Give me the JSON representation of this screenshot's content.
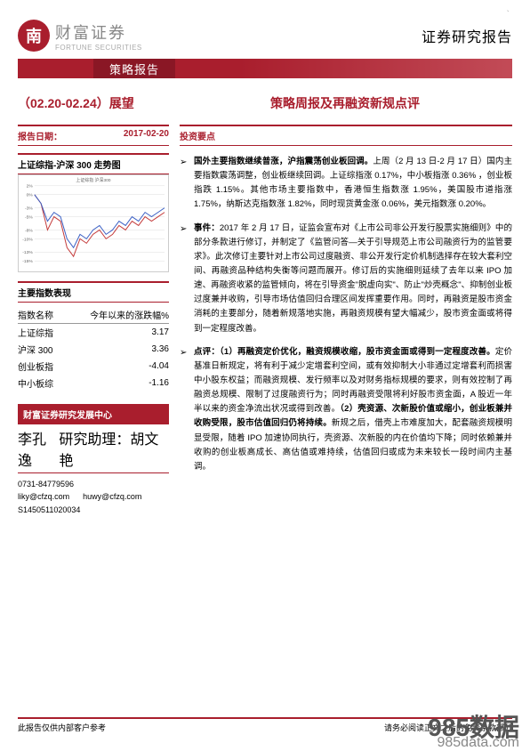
{
  "header": {
    "logo_char": "南",
    "company_cn": "财富证券",
    "company_en": "FORTUNE SECURITIES",
    "report_type": "证券研究报告",
    "tick": "、"
  },
  "red_band": {
    "label": "策略报告"
  },
  "titles": {
    "left": "（02.20-02.24）展望",
    "right": "策略周报及再融资新规点评"
  },
  "report_date": {
    "label": "报告日期：",
    "value": "2017-02-20"
  },
  "chart": {
    "title": "上证综指-沪深 300 走势图",
    "y_ticks": [
      "2%",
      "0%",
      "-3%",
      "-5%",
      "-8%",
      "-10%",
      "-13%",
      "-15%"
    ],
    "series": [
      {
        "name": "上证综指",
        "color": "#c43a3a",
        "points": [
          0,
          -2,
          -8,
          -5,
          -6,
          -12,
          -14,
          -10,
          -11,
          -9,
          -8,
          -10,
          -9,
          -7,
          -8,
          -6,
          -7,
          -5,
          -6,
          -5,
          -4
        ]
      },
      {
        "name": "沪深300",
        "color": "#3a5fc4",
        "points": [
          0,
          -2,
          -6,
          -4,
          -5,
          -10,
          -12,
          -9,
          -10,
          -8,
          -7,
          -9,
          -8,
          -6,
          -7,
          -5,
          -6,
          -4,
          -5,
          -4,
          -3
        ]
      }
    ],
    "y_min": -15,
    "y_max": 2,
    "legend": [
      "上证综指",
      "沪深300"
    ]
  },
  "perf_table": {
    "title": "主要指数表现",
    "headers": [
      "指数名称",
      "今年以来的涨跌幅%"
    ],
    "rows": [
      [
        "上证综指",
        "3.17"
      ],
      [
        "沪深 300",
        "3.36"
      ],
      [
        "创业板指",
        "-4.04"
      ],
      [
        "中小板综",
        "-1.16"
      ]
    ]
  },
  "center": {
    "title": "财富证券研究发展中心",
    "analyst_name": "李孔逸",
    "assistant_label": "研究助理：",
    "assistant_name": "胡文艳",
    "phone": "0731-84779596",
    "email1": "liky@cfzq.com",
    "email2": "huwy@cfzq.com",
    "license": "S1450511020034"
  },
  "right_section_title": "投资要点",
  "bullets": [
    "<b>国外主要指数继续普涨，沪指震荡创业板回调。</b>上周（2 月 13 日-2 月 17 日）国内主要指数震荡调整，创业板继续回调。上证综指涨 0.17%，中小板指涨 0.36% ，创业板指跌 1.15%。其他市场主要指数中，香港恒生指数涨 1.95%，美国股市道指涨 1.75%，纳斯达克指数涨 1.82%，同时现货黄金涨 0.06%，美元指数涨 0.20%。",
    "<b>事件：</b>2017 年 2 月 17 日，证监会宣布对《上市公司非公开发行股票实施细则》中的部分条款进行修订，并制定了《监管问答—关于引导规范上市公司融资行为的监管要求》。此次修订主要针对上市公司过度融资、非公开发行定价机制选择存在较大套利空间、再融资品种结构失衡等问题而展开。修订后的实施细则延续了去年以来 IPO 加速、再融资收紧的监管倾向，将在引导资金\"脱虚向实\"、防止\"炒壳概念\"、抑制创业板过度兼并收购，引导市场估值回归合理区间发挥重要作用。同时，再融资是股市资金消耗的主要部分，随着新规落地实施，再融资规模有望大幅减少，股市资金面或将得到一定程度改善。",
    "<b>点评：（1）再融资定价优化，融资规模收缩，股市资金面或得到一定程度改善。</b>定价基准日新规定，将有利于减少定增套利空间，或有效抑制大小非通过定增套利而损害中小股东权益；而融资规模、发行频率以及对财务指标规模的要求，则有效控制了再融资总规模、限制了过度融资行为；同时再融资受限将利好股市资金面，A 股近一年半以来的资金净流出状况或得到改善。<b>（2）壳资源、次新股价值或缩小，创业板兼并收购受限，股市估值回归仍将持续。</b>新规之后，借壳上市难度加大，配套融资规模明显受限，随着 IPO 加速协同执行，壳资源、次新股的内在价值均下降；同时依赖兼并收购的创业板高成长、高估值或难持续，估值回归或成为未来较长一段时间内主基调。"
  ],
  "footer": {
    "left": "此报告仅供内部客户参考",
    "right": "请务必阅读正文之后的免责条款部分"
  },
  "watermark": {
    "main": "985数据",
    "sub": "985data.com"
  },
  "colors": {
    "brand": "#a91e2d",
    "brand_dark": "#8a1725",
    "grid": "#dddddd"
  }
}
